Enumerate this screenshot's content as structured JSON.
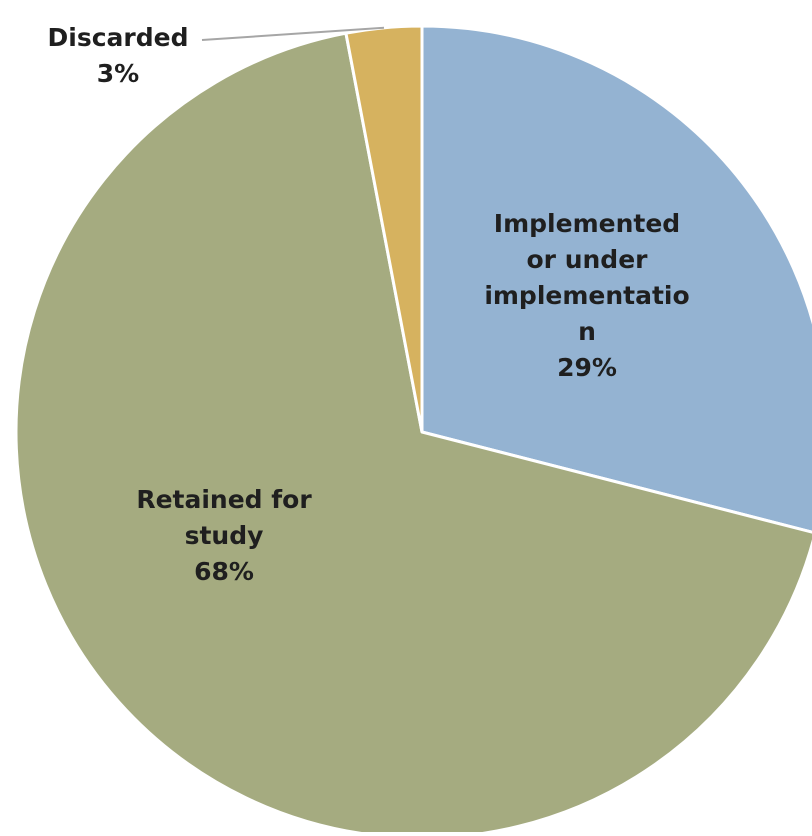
{
  "chart_data": {
    "type": "pie",
    "slices": [
      {
        "label_lines": [
          "Implemented",
          "or under",
          "implementatio",
          "n"
        ],
        "percent_label": "29%",
        "value": 29,
        "color": "#94b3d2"
      },
      {
        "label_lines": [
          "Retained for",
          "study"
        ],
        "percent_label": "68%",
        "value": 68,
        "color": "#a5ab80"
      },
      {
        "label_lines": [
          "Discarded"
        ],
        "percent_label": "3%",
        "value": 3,
        "color": "#d6b25f"
      }
    ],
    "start_angle_deg": 0,
    "direction": "clockwise",
    "slice_border_color": "#ffffff",
    "leader_line_color": "#a6a6a6",
    "legend": "none"
  }
}
